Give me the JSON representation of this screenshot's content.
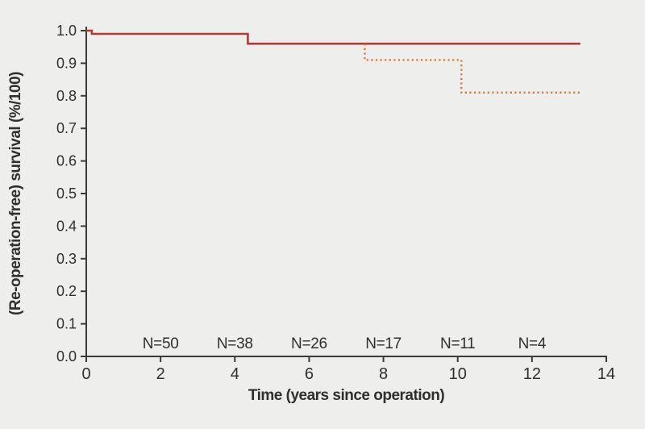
{
  "figure": {
    "background_color": "#eeeeec",
    "axis_color": "#3a3a3a",
    "text_color": "#2f2f2f"
  },
  "chart_data": {
    "type": "line",
    "subtype": "kaplan-meier-step",
    "title": "",
    "xlabel": "Time (years since operation)",
    "ylabel": "(Re-operation-free) survival (%/100)",
    "xlim": [
      0,
      14
    ],
    "ylim": [
      0.0,
      1.0
    ],
    "xticks": [
      0,
      2,
      4,
      6,
      8,
      10,
      12,
      14
    ],
    "xticklabels": [
      "0",
      "2",
      "4",
      "6",
      "8",
      "10",
      "12",
      "14"
    ],
    "yticks": [
      0.0,
      0.1,
      0.2,
      0.3,
      0.4,
      0.5,
      0.6,
      0.7,
      0.8,
      0.9,
      1.0
    ],
    "yticklabels": [
      "0.0",
      "0.1",
      "0.2",
      "0.3",
      "0.4",
      "0.5",
      "0.6",
      "0.7",
      "0.8",
      "0.9",
      "1.0"
    ],
    "grid": false,
    "legend": false,
    "series": [
      {
        "name": "survival-solid",
        "style": "solid",
        "color": "#b03a34",
        "points": [
          [
            0,
            1.0
          ],
          [
            0.15,
            1.0
          ],
          [
            0.15,
            0.99
          ],
          [
            4.35,
            0.99
          ],
          [
            4.35,
            0.96
          ],
          [
            13.3,
            0.96
          ]
        ]
      },
      {
        "name": "reoperation-free-dotted",
        "style": "dotted",
        "color": "#d4753a",
        "points": [
          [
            7.5,
            0.96
          ],
          [
            7.5,
            0.91
          ],
          [
            10.1,
            0.91
          ],
          [
            10.1,
            0.81
          ],
          [
            13.3,
            0.81
          ]
        ]
      }
    ],
    "at_risk": [
      {
        "x": 2,
        "label": "N=50"
      },
      {
        "x": 4,
        "label": "N=38"
      },
      {
        "x": 6,
        "label": "N=26"
      },
      {
        "x": 8,
        "label": "N=17"
      },
      {
        "x": 10,
        "label": "N=11"
      },
      {
        "x": 12,
        "label": "N=4"
      }
    ]
  }
}
